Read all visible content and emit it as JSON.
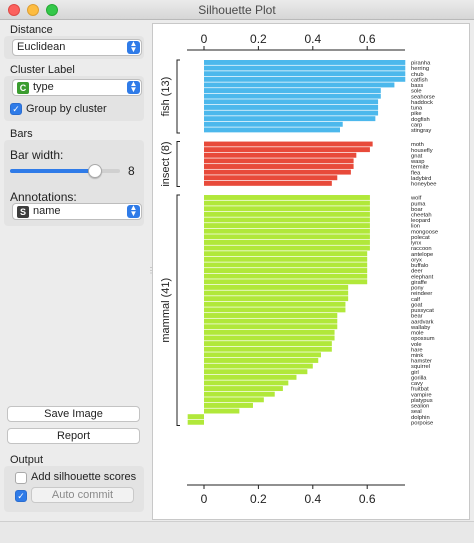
{
  "window": {
    "title": "Silhouette Plot"
  },
  "distance": {
    "label": "Distance",
    "value": "Euclidean"
  },
  "cluster_label": {
    "label": "Cluster Label",
    "value": "type",
    "badge": "C",
    "group_label": "Group by cluster",
    "group_checked": true
  },
  "bars": {
    "label": "Bars",
    "width_label": "Bar width:",
    "width_value": "8",
    "width_fraction": 0.77,
    "annotations_label": "Annotations:",
    "annotations_value": "name",
    "annotations_badge": "S"
  },
  "buttons": {
    "save": "Save Image",
    "report": "Report"
  },
  "output": {
    "label": "Output",
    "add_scores_label": "Add silhouette scores",
    "add_scores_checked": false,
    "auto_commit_label": "Auto commit",
    "auto_commit_checked": true
  },
  "colors": {
    "fish": "#4cb8ec",
    "insect": "#e84a3a",
    "mammal": "#b1e83a",
    "accent": "#2f7be8"
  },
  "chart_data": {
    "type": "bar",
    "orientation": "horizontal",
    "xlim": [
      -0.07,
      0.75
    ],
    "xticks": [
      "0",
      "0.2",
      "0.4",
      "0.6"
    ],
    "xtick_values": [
      0,
      0.2,
      0.4,
      0.6
    ],
    "clusters": [
      {
        "name": "fish (13)",
        "color": "#4cb8ec",
        "items": [
          {
            "label": "piranha",
            "value": 0.74
          },
          {
            "label": "herring",
            "value": 0.74
          },
          {
            "label": "chub",
            "value": 0.74
          },
          {
            "label": "catfish",
            "value": 0.74
          },
          {
            "label": "bass",
            "value": 0.7
          },
          {
            "label": "sole",
            "value": 0.65
          },
          {
            "label": "seahorse",
            "value": 0.65
          },
          {
            "label": "haddock",
            "value": 0.64
          },
          {
            "label": "tuna",
            "value": 0.64
          },
          {
            "label": "pike",
            "value": 0.64
          },
          {
            "label": "dogfish",
            "value": 0.63
          },
          {
            "label": "carp",
            "value": 0.51
          },
          {
            "label": "stingray",
            "value": 0.5
          }
        ]
      },
      {
        "name": "insect (8)",
        "color": "#e84a3a",
        "items": [
          {
            "label": "moth",
            "value": 0.62
          },
          {
            "label": "housefly",
            "value": 0.61
          },
          {
            "label": "gnat",
            "value": 0.56
          },
          {
            "label": "wasp",
            "value": 0.55
          },
          {
            "label": "termite",
            "value": 0.55
          },
          {
            "label": "flea",
            "value": 0.54
          },
          {
            "label": "ladybird",
            "value": 0.49
          },
          {
            "label": "honeybee",
            "value": 0.47
          }
        ]
      },
      {
        "name": "mammal (41)",
        "color": "#b1e83a",
        "items": [
          {
            "label": "wolf",
            "value": 0.61
          },
          {
            "label": "puma",
            "value": 0.61
          },
          {
            "label": "boar",
            "value": 0.61
          },
          {
            "label": "cheetah",
            "value": 0.61
          },
          {
            "label": "leopard",
            "value": 0.61
          },
          {
            "label": "lion",
            "value": 0.61
          },
          {
            "label": "mongoose",
            "value": 0.61
          },
          {
            "label": "polecat",
            "value": 0.61
          },
          {
            "label": "lynx",
            "value": 0.61
          },
          {
            "label": "raccoon",
            "value": 0.61
          },
          {
            "label": "antelope",
            "value": 0.6
          },
          {
            "label": "oryx",
            "value": 0.6
          },
          {
            "label": "buffalo",
            "value": 0.6
          },
          {
            "label": "deer",
            "value": 0.6
          },
          {
            "label": "elephant",
            "value": 0.6
          },
          {
            "label": "giraffe",
            "value": 0.6
          },
          {
            "label": "pony",
            "value": 0.53
          },
          {
            "label": "reindeer",
            "value": 0.53
          },
          {
            "label": "calf",
            "value": 0.53
          },
          {
            "label": "goat",
            "value": 0.52
          },
          {
            "label": "pussycat",
            "value": 0.52
          },
          {
            "label": "bear",
            "value": 0.49
          },
          {
            "label": "aardvark",
            "value": 0.49
          },
          {
            "label": "wallaby",
            "value": 0.49
          },
          {
            "label": "mole",
            "value": 0.48
          },
          {
            "label": "opossum",
            "value": 0.48
          },
          {
            "label": "vole",
            "value": 0.47
          },
          {
            "label": "hare",
            "value": 0.47
          },
          {
            "label": "mink",
            "value": 0.43
          },
          {
            "label": "hamster",
            "value": 0.42
          },
          {
            "label": "squirrel",
            "value": 0.4
          },
          {
            "label": "girl",
            "value": 0.38
          },
          {
            "label": "gorilla",
            "value": 0.34
          },
          {
            "label": "cavy",
            "value": 0.31
          },
          {
            "label": "fruitbat",
            "value": 0.29
          },
          {
            "label": "vampire",
            "value": 0.26
          },
          {
            "label": "platypus",
            "value": 0.22
          },
          {
            "label": "sealion",
            "value": 0.18
          },
          {
            "label": "seal",
            "value": 0.13
          },
          {
            "label": "dolphin",
            "value": -0.06
          },
          {
            "label": "porpoise",
            "value": -0.06
          }
        ]
      }
    ]
  }
}
